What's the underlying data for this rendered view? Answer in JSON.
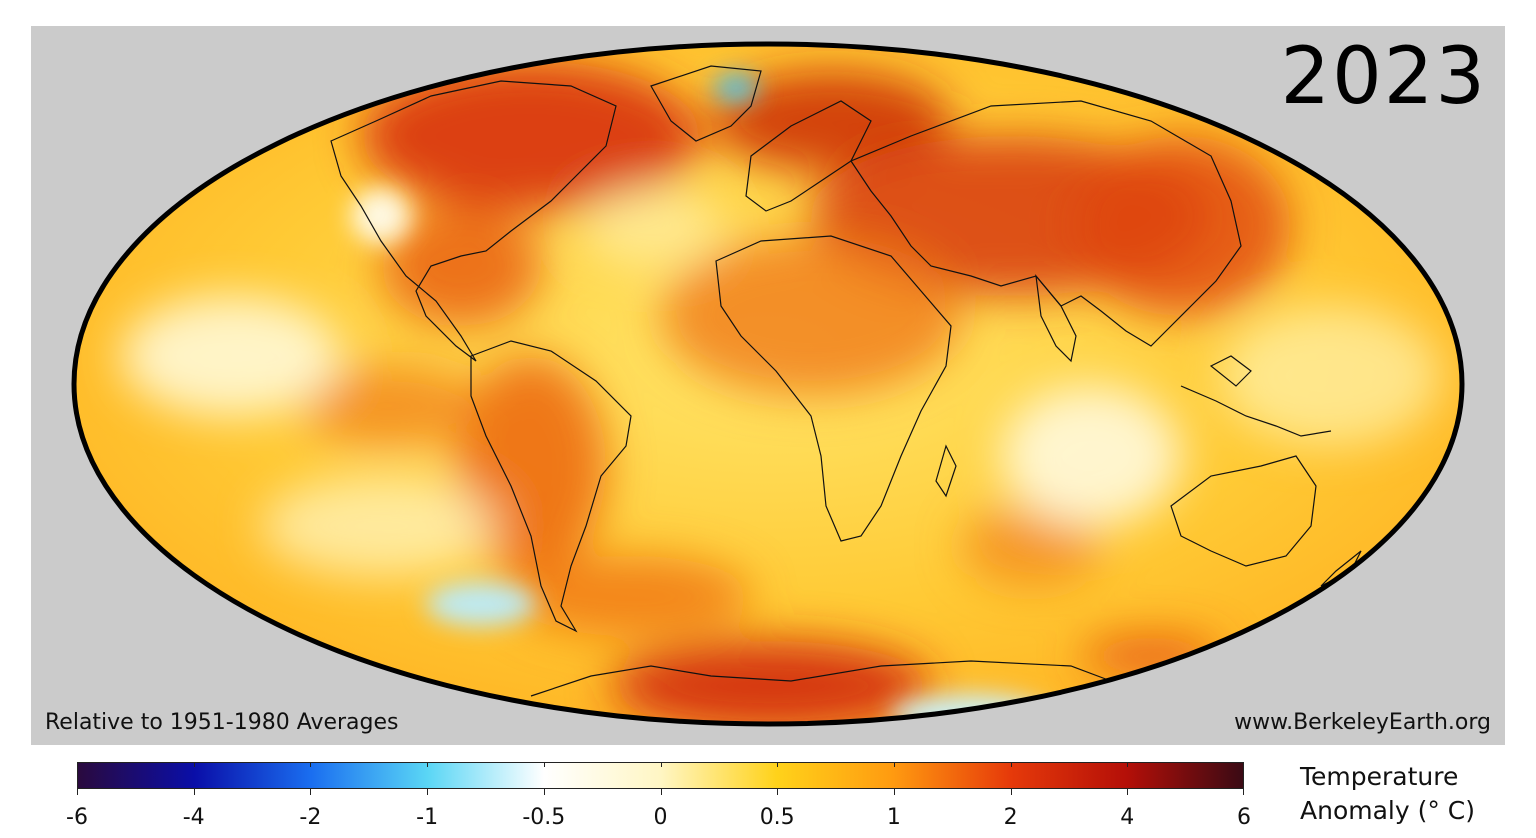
{
  "map": {
    "year": "2023",
    "note_left": "Relative to 1951-1980 Averages",
    "note_right": "www.BerkeleyEarth.org"
  },
  "colorbar": {
    "title_line1": "Temperature",
    "title_line2": "Anomaly (° C)",
    "ticks": [
      "-6",
      "-4",
      "-2",
      "-1",
      "-0.5",
      "0",
      "0.5",
      "1",
      "2",
      "4",
      "6"
    ],
    "colors": [
      "#2a0a3e",
      "#0a0ea8",
      "#1a6ef0",
      "#5ad6f5",
      "#ffffff",
      "#fff6c4",
      "#ffd21a",
      "#ff9a10",
      "#e63a0a",
      "#b40f08",
      "#3a0a14"
    ]
  }
}
